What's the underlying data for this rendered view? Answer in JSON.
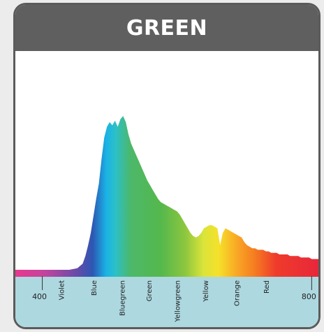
{
  "card": {
    "title": "GREEN"
  },
  "chart_data": {
    "type": "area",
    "title": "GREEN",
    "xlabel": "",
    "ylabel": "",
    "xlim": [
      360,
      810
    ],
    "ylim": [
      0,
      1
    ],
    "grid": false,
    "x_ticks": [
      400,
      800
    ],
    "color_bands": [
      {
        "label": "Violet",
        "x": 428
      },
      {
        "label": "Blue",
        "x": 476
      },
      {
        "label": "Bluegreen",
        "x": 518
      },
      {
        "label": "Green",
        "x": 558
      },
      {
        "label": "Yellowgreen",
        "x": 600
      },
      {
        "label": "Yellow",
        "x": 642
      },
      {
        "label": "Orange",
        "x": 688
      },
      {
        "label": "Red",
        "x": 732
      }
    ],
    "colors": {
      "baseline_band": "#add8e0",
      "header": "#5f5f5f"
    },
    "series": [
      {
        "x": [
          360,
          440,
          452,
          460,
          464,
          468,
          472,
          476,
          480,
          484,
          488,
          492,
          496,
          500,
          504,
          508,
          512,
          516,
          520,
          524,
          528,
          532,
          536,
          540,
          544,
          548,
          552,
          556,
          560,
          564,
          568,
          572,
          576,
          580,
          584,
          588,
          592,
          596,
          600,
          604,
          608,
          612,
          616,
          620,
          624,
          628,
          632,
          636,
          640,
          644,
          648,
          652,
          656,
          660,
          664,
          668,
          672,
          676,
          680,
          684,
          688,
          692,
          696,
          700,
          704,
          708,
          712,
          716,
          720,
          724,
          728,
          732,
          736,
          740,
          744,
          748,
          752,
          756,
          760,
          764,
          768,
          772,
          776,
          780,
          784,
          788,
          792,
          796,
          800,
          804,
          808
        ],
        "y": [
          0,
          0,
          0.01,
          0.04,
          0.09,
          0.16,
          0.24,
          0.35,
          0.46,
          0.56,
          0.72,
          0.86,
          0.93,
          0.96,
          0.94,
          0.97,
          0.93,
          0.98,
          1.0,
          0.96,
          0.88,
          0.82,
          0.78,
          0.74,
          0.7,
          0.66,
          0.62,
          0.58,
          0.55,
          0.52,
          0.49,
          0.46,
          0.44,
          0.43,
          0.42,
          0.41,
          0.4,
          0.39,
          0.38,
          0.36,
          0.33,
          0.3,
          0.27,
          0.24,
          0.22,
          0.21,
          0.22,
          0.24,
          0.27,
          0.28,
          0.29,
          0.29,
          0.28,
          0.27,
          0.16,
          0.24,
          0.27,
          0.26,
          0.25,
          0.24,
          0.23,
          0.22,
          0.21,
          0.18,
          0.16,
          0.15,
          0.14,
          0.14,
          0.13,
          0.13,
          0.13,
          0.12,
          0.12,
          0.11,
          0.11,
          0.11,
          0.1,
          0.1,
          0.1,
          0.1,
          0.09,
          0.09,
          0.09,
          0.09,
          0.08,
          0.08,
          0.08,
          0.08,
          0.07,
          0.07,
          0.07
        ]
      }
    ]
  }
}
